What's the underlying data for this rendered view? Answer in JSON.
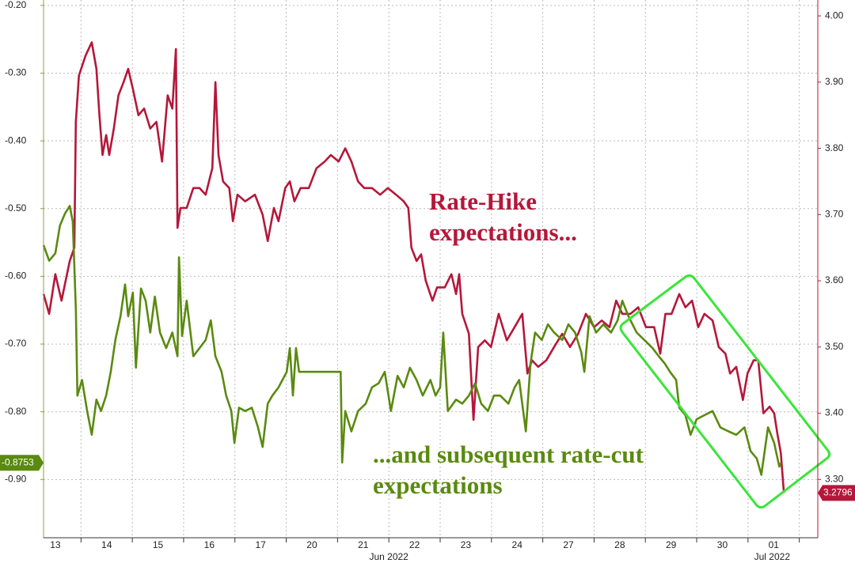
{
  "chart_data": {
    "type": "line",
    "annotations": [
      {
        "text": "Rate-Hike",
        "color": "#b5173a"
      },
      {
        "text": "expectations...",
        "color": "#b5173a"
      },
      {
        "text": "...and subsequent rate-cut",
        "color": "#5a8a10"
      },
      {
        "text": "expectations",
        "color": "#5a8a10"
      }
    ],
    "xlim": [
      0.27,
      15.36
    ],
    "xticks": [
      {
        "value": 0.5,
        "label": "13"
      },
      {
        "value": 1.5,
        "label": "14"
      },
      {
        "value": 2.5,
        "label": "15"
      },
      {
        "value": 3.5,
        "label": "16"
      },
      {
        "value": 4.5,
        "label": "17"
      },
      {
        "value": 5.5,
        "label": "20"
      },
      {
        "value": 6.5,
        "label": "21"
      },
      {
        "value": 7.5,
        "label": "22"
      },
      {
        "value": 8.5,
        "label": "23"
      },
      {
        "value": 9.5,
        "label": "24"
      },
      {
        "value": 10.5,
        "label": "27"
      },
      {
        "value": 11.5,
        "label": "28"
      },
      {
        "value": 12.5,
        "label": "29"
      },
      {
        "value": 13.5,
        "label": "30"
      },
      {
        "value": 14.5,
        "label": "01"
      }
    ],
    "xgrid": [
      1,
      2,
      3,
      4,
      5,
      6,
      7,
      8,
      9,
      10,
      11,
      12,
      13,
      14,
      15
    ],
    "months": [
      {
        "value": 7.0,
        "label": "Jun 2022"
      },
      {
        "value": 14.47,
        "label": "Jul 2022"
      }
    ],
    "ylim": [
      -0.986,
      -0.192
    ],
    "yticks": [
      {
        "value": -0.2,
        "label": "-0.20"
      },
      {
        "value": -0.3,
        "label": "-0.30"
      },
      {
        "value": -0.4,
        "label": "-0.40"
      },
      {
        "value": -0.5,
        "label": "-0.50"
      },
      {
        "value": -0.6,
        "label": "-0.60"
      },
      {
        "value": -0.7,
        "label": "-0.70"
      },
      {
        "value": -0.8,
        "label": "-0.80"
      },
      {
        "value": -0.9,
        "label": "-0.90"
      }
    ],
    "y2lim": [
      3.212,
      4.024
    ],
    "y2ticks": [
      {
        "value": 4.0,
        "label": "4.00"
      },
      {
        "value": 3.9,
        "label": "3.90"
      },
      {
        "value": 3.8,
        "label": "3.80"
      },
      {
        "value": 3.7,
        "label": "3.70"
      },
      {
        "value": 3.6,
        "label": "3.60"
      },
      {
        "value": 3.5,
        "label": "3.50"
      },
      {
        "value": 3.4,
        "label": "3.40"
      },
      {
        "value": 3.3,
        "label": "3.30"
      }
    ],
    "grid": true,
    "series": [
      {
        "color": "#b5173a",
        "axis": "y2",
        "x": [
          0.27,
          0.38,
          0.5,
          0.62,
          0.78,
          0.87,
          0.9,
          0.96,
          1.09,
          1.21,
          1.3,
          1.36,
          1.42,
          1.49,
          1.55,
          1.64,
          1.73,
          1.83,
          1.92,
          2.01,
          2.12,
          2.23,
          2.35,
          2.47,
          2.58,
          2.69,
          2.78,
          2.85,
          2.88,
          2.94,
          3.06,
          3.19,
          3.31,
          3.43,
          3.56,
          3.62,
          3.68,
          3.77,
          3.89,
          3.96,
          4.05,
          4.2,
          4.39,
          4.54,
          4.64,
          4.76,
          4.85,
          4.98,
          5.07,
          5.16,
          5.28,
          5.44,
          5.59,
          5.75,
          5.87,
          6.02,
          6.15,
          6.27,
          6.4,
          6.52,
          6.67,
          6.83,
          6.98,
          7.14,
          7.29,
          7.38,
          7.44,
          7.54,
          7.63,
          7.72,
          7.85,
          7.94,
          8.09,
          8.22,
          8.31,
          8.37,
          8.43,
          8.56,
          8.65,
          8.74,
          8.87,
          8.99,
          9.14,
          9.3,
          9.45,
          9.6,
          9.7,
          9.79,
          9.91,
          10.07,
          10.22,
          10.38,
          10.53,
          10.69,
          10.84,
          11.0,
          11.15,
          11.3,
          11.43,
          11.55,
          11.71,
          11.86,
          12.01,
          12.17,
          12.29,
          12.39,
          12.51,
          12.66,
          12.78,
          12.91,
          13.03,
          13.15,
          13.31,
          13.43,
          13.56,
          13.65,
          13.77,
          13.9,
          13.99,
          14.11,
          14.2,
          14.3,
          14.42,
          14.51,
          14.57,
          14.64,
          14.7
        ],
        "values": [
          3.58,
          3.55,
          3.61,
          3.57,
          3.63,
          3.65,
          3.84,
          3.91,
          3.94,
          3.96,
          3.92,
          3.85,
          3.79,
          3.82,
          3.79,
          3.83,
          3.88,
          3.9,
          3.92,
          3.89,
          3.85,
          3.86,
          3.83,
          3.84,
          3.78,
          3.88,
          3.86,
          3.95,
          3.68,
          3.71,
          3.71,
          3.74,
          3.74,
          3.73,
          3.77,
          3.9,
          3.79,
          3.75,
          3.74,
          3.69,
          3.73,
          3.72,
          3.73,
          3.7,
          3.66,
          3.71,
          3.69,
          3.74,
          3.75,
          3.72,
          3.74,
          3.74,
          3.77,
          3.78,
          3.79,
          3.78,
          3.8,
          3.78,
          3.75,
          3.74,
          3.74,
          3.73,
          3.74,
          3.73,
          3.72,
          3.71,
          3.65,
          3.63,
          3.64,
          3.6,
          3.57,
          3.59,
          3.59,
          3.61,
          3.58,
          3.61,
          3.55,
          3.52,
          3.39,
          3.5,
          3.51,
          3.5,
          3.55,
          3.51,
          3.53,
          3.55,
          3.46,
          3.48,
          3.47,
          3.48,
          3.5,
          3.52,
          3.5,
          3.52,
          3.55,
          3.53,
          3.54,
          3.53,
          3.57,
          3.55,
          3.55,
          3.56,
          3.53,
          3.53,
          3.49,
          3.55,
          3.55,
          3.58,
          3.56,
          3.57,
          3.53,
          3.55,
          3.54,
          3.5,
          3.49,
          3.46,
          3.47,
          3.42,
          3.46,
          3.48,
          3.48,
          3.4,
          3.41,
          3.4,
          3.37,
          3.34,
          3.2796
        ]
      },
      {
        "color": "#5a8a10",
        "axis": "y",
        "x": [
          0.27,
          0.38,
          0.5,
          0.59,
          0.69,
          0.78,
          0.84,
          0.9,
          0.93,
          1.02,
          1.12,
          1.21,
          1.3,
          1.39,
          1.49,
          1.58,
          1.67,
          1.77,
          1.86,
          1.92,
          2.01,
          2.07,
          2.17,
          2.26,
          2.35,
          2.44,
          2.54,
          2.66,
          2.78,
          2.88,
          2.91,
          2.97,
          3.06,
          3.19,
          3.31,
          3.43,
          3.53,
          3.62,
          3.74,
          3.83,
          3.93,
          3.99,
          4.08,
          4.2,
          4.33,
          4.45,
          4.54,
          4.64,
          4.73,
          4.85,
          5.01,
          5.07,
          5.13,
          5.19,
          5.25,
          5.44,
          5.75,
          6.06,
          6.09,
          6.15,
          6.27,
          6.4,
          6.55,
          6.67,
          6.8,
          6.92,
          7.04,
          7.17,
          7.29,
          7.41,
          7.54,
          7.66,
          7.81,
          7.91,
          8.0,
          8.06,
          8.15,
          8.31,
          8.43,
          8.56,
          8.68,
          8.8,
          8.93,
          9.05,
          9.17,
          9.33,
          9.45,
          9.54,
          9.67,
          9.76,
          9.85,
          9.98,
          10.1,
          10.22,
          10.38,
          10.5,
          10.63,
          10.75,
          10.81,
          10.91,
          11.04,
          11.18,
          11.33,
          11.46,
          11.55,
          11.67,
          11.83,
          11.98,
          12.14,
          12.26,
          12.38,
          12.48,
          12.6,
          12.66,
          12.78,
          12.88,
          13.0,
          13.15,
          13.31,
          13.46,
          13.62,
          13.77,
          13.93,
          14.05,
          14.17,
          14.26,
          14.39,
          14.51,
          14.61,
          14.64
        ],
        "values": [
          -0.554,
          -0.577,
          -0.566,
          -0.525,
          -0.507,
          -0.496,
          -0.519,
          -0.648,
          -0.776,
          -0.753,
          -0.799,
          -0.834,
          -0.782,
          -0.799,
          -0.776,
          -0.741,
          -0.694,
          -0.659,
          -0.612,
          -0.659,
          -0.624,
          -0.735,
          -0.618,
          -0.636,
          -0.683,
          -0.63,
          -0.683,
          -0.706,
          -0.683,
          -0.718,
          -0.572,
          -0.688,
          -0.636,
          -0.718,
          -0.706,
          -0.694,
          -0.665,
          -0.718,
          -0.741,
          -0.776,
          -0.799,
          -0.846,
          -0.794,
          -0.799,
          -0.794,
          -0.823,
          -0.852,
          -0.788,
          -0.776,
          -0.764,
          -0.741,
          -0.706,
          -0.776,
          -0.706,
          -0.741,
          -0.741,
          -0.741,
          -0.741,
          -0.875,
          -0.799,
          -0.829,
          -0.799,
          -0.788,
          -0.764,
          -0.758,
          -0.741,
          -0.799,
          -0.747,
          -0.764,
          -0.735,
          -0.753,
          -0.776,
          -0.753,
          -0.776,
          -0.764,
          -0.683,
          -0.799,
          -0.782,
          -0.788,
          -0.776,
          -0.758,
          -0.788,
          -0.799,
          -0.776,
          -0.776,
          -0.788,
          -0.764,
          -0.753,
          -0.829,
          -0.729,
          -0.683,
          -0.694,
          -0.671,
          -0.683,
          -0.694,
          -0.671,
          -0.683,
          -0.712,
          -0.741,
          -0.659,
          -0.683,
          -0.671,
          -0.683,
          -0.665,
          -0.636,
          -0.659,
          -0.683,
          -0.694,
          -0.706,
          -0.718,
          -0.729,
          -0.741,
          -0.753,
          -0.794,
          -0.805,
          -0.834,
          -0.811,
          -0.805,
          -0.799,
          -0.823,
          -0.829,
          -0.834,
          -0.823,
          -0.858,
          -0.869,
          -0.893,
          -0.823,
          -0.846,
          -0.881,
          -0.8753
        ]
      }
    ]
  }
}
